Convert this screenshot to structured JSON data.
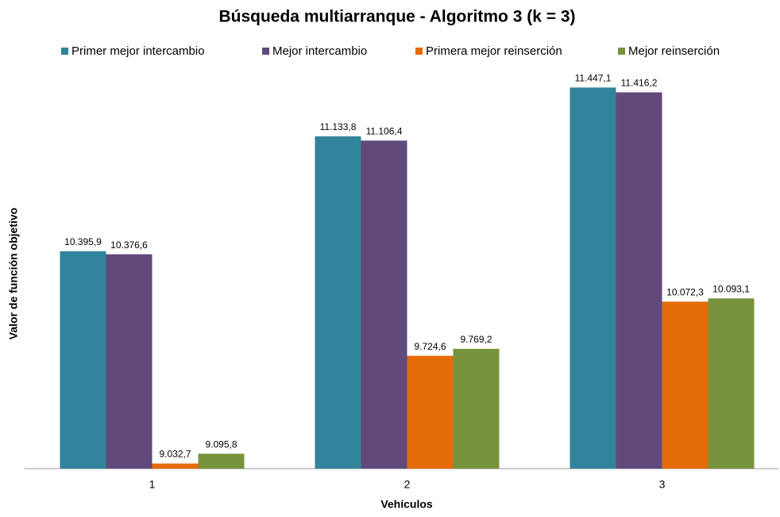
{
  "chart_data": {
    "type": "bar",
    "title": "Búsqueda multiarranque - Algoritmo 3 (k = 3)",
    "x_label": "Vehículos",
    "y_label": "Valor de función objetivo",
    "categories": [
      "1",
      "2",
      "3"
    ],
    "series": [
      {
        "name": "Primer mejor intercambio",
        "color": "#31849b",
        "values": [
          10395.9,
          11133.8,
          11447.1
        ],
        "value_labels": [
          "10.395,9",
          "11.133,8",
          "11.447,1"
        ]
      },
      {
        "name": "Mejor intercambio",
        "color": "#604a7b",
        "values": [
          10376.6,
          11106.4,
          11416.2
        ],
        "value_labels": [
          "10.376,6",
          "11.106,4",
          "11.416,2"
        ]
      },
      {
        "name": "Primera mejor reinserción",
        "color": "#e36c09",
        "values": [
          9032.7,
          9724.6,
          10072.3
        ],
        "value_labels": [
          "9.032,7",
          "9.724,6",
          "10.072,3"
        ]
      },
      {
        "name": "Mejor reinserción",
        "color": "#77933c",
        "values": [
          9095.8,
          9769.2,
          10093.1
        ],
        "value_labels": [
          "9.095,8",
          "9.769,2",
          "10.093,1"
        ]
      }
    ],
    "ylim": [
      9000,
      11500
    ]
  }
}
